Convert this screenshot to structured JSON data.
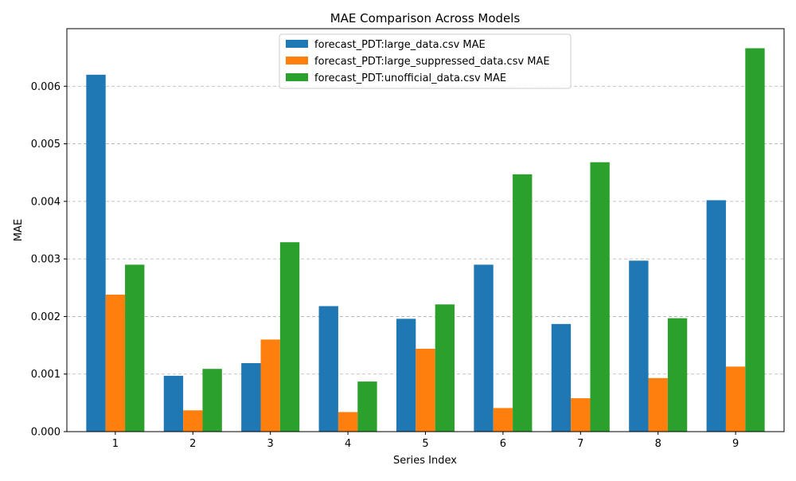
{
  "chart_data": {
    "type": "bar",
    "title": "MAE Comparison Across Models",
    "xlabel": "Series Index",
    "ylabel": "MAE",
    "categories": [
      "1",
      "2",
      "3",
      "4",
      "5",
      "6",
      "7",
      "8",
      "9"
    ],
    "ylim": [
      0,
      0.007
    ],
    "yticks": [
      "0.000",
      "0.001",
      "0.002",
      "0.003",
      "0.004",
      "0.005",
      "0.006"
    ],
    "grid": "horizontal dashed",
    "legend_position": "top-center",
    "series": [
      {
        "name": "forecast_PDT:large_data.csv MAE",
        "color": "#1f77b4",
        "values": [
          0.0062,
          0.00097,
          0.00119,
          0.00218,
          0.00196,
          0.0029,
          0.00187,
          0.00297,
          0.00402
        ]
      },
      {
        "name": "forecast_PDT:large_suppressed_data.csv MAE",
        "color": "#ff7f0e",
        "values": [
          0.00238,
          0.00037,
          0.0016,
          0.00034,
          0.00144,
          0.00041,
          0.00058,
          0.00093,
          0.00113
        ]
      },
      {
        "name": "forecast_PDT:unofficial_data.csv MAE",
        "color": "#2ca02c",
        "values": [
          0.0029,
          0.00109,
          0.00329,
          0.00087,
          0.00221,
          0.00447,
          0.00468,
          0.00197,
          0.00666
        ]
      }
    ]
  }
}
